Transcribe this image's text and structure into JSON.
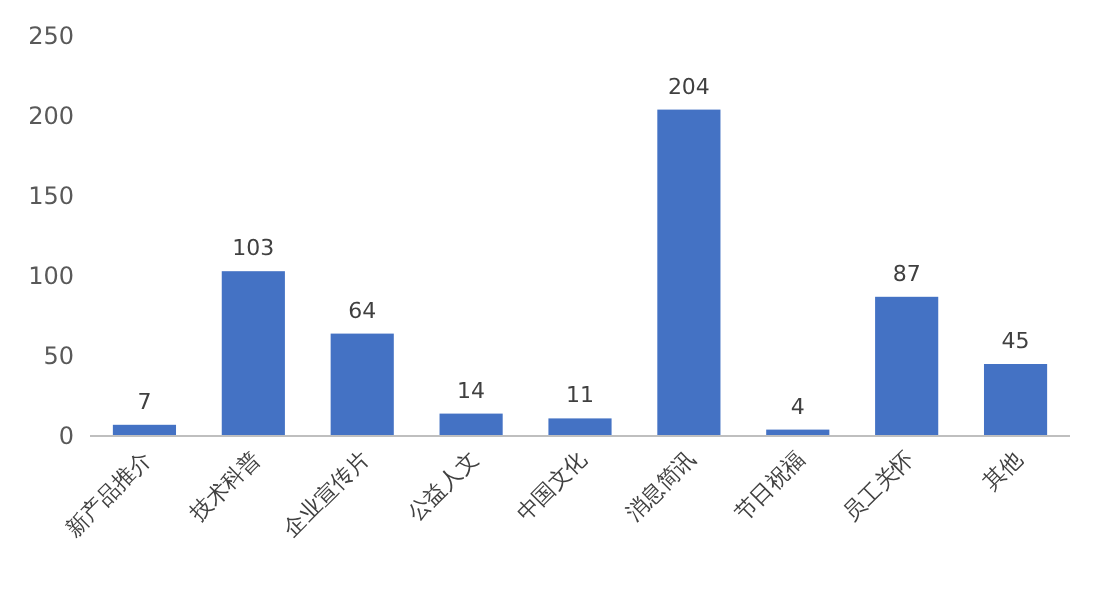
{
  "chart_data": {
    "type": "bar",
    "categories": [
      "新产品推介",
      "技术科普",
      "企业宣传片",
      "公益人文",
      "中国文化",
      "消息简讯",
      "节日祝福",
      "员工关怀",
      "其他"
    ],
    "values": [
      7,
      103,
      64,
      14,
      11,
      204,
      4,
      87,
      45
    ],
    "color": "#4472c4",
    "ylim": [
      0,
      250
    ],
    "yticks": [
      0,
      50,
      100,
      150,
      200,
      250
    ],
    "data_labels": true,
    "grid": false
  }
}
